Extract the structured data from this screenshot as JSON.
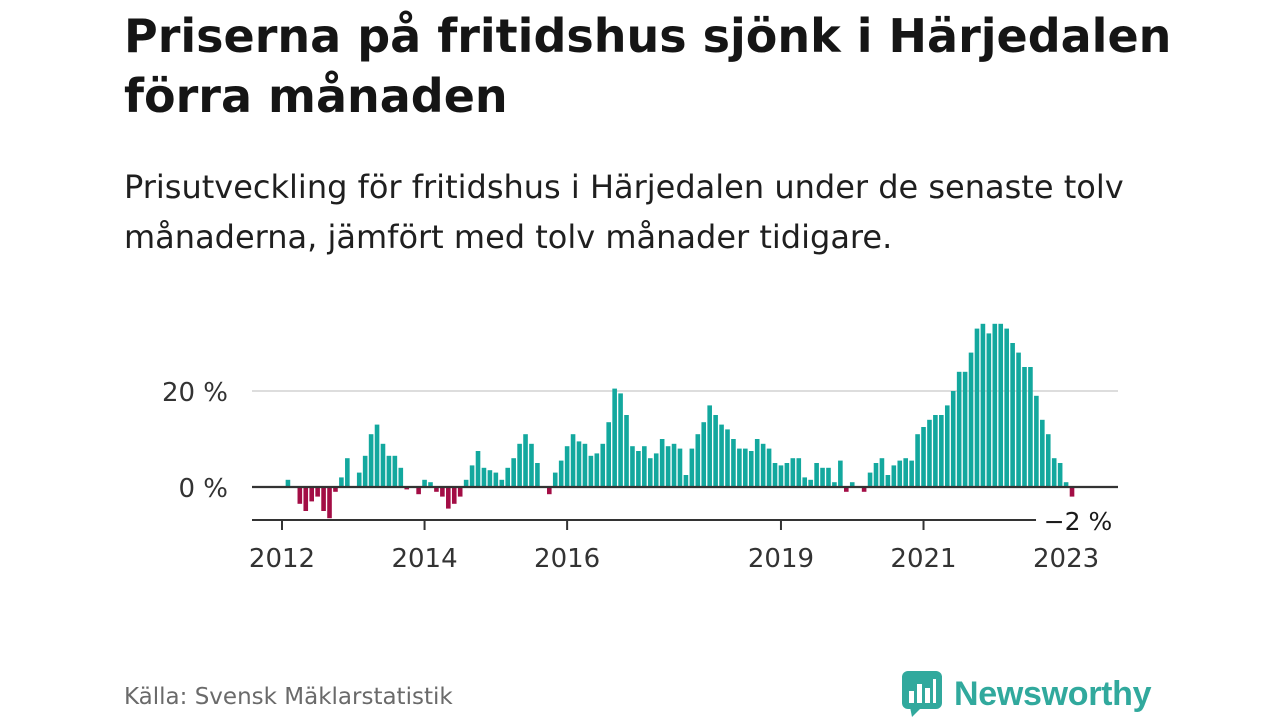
{
  "header": {
    "title": "Priserna på fritidshus sjönk i Härjedalen förra månaden",
    "subtitle": "Prisutveckling för fritidshus i Härjedalen under de senaste tolv månaderna, jämfört med tolv månader tidigare."
  },
  "footer": {
    "source": "Källa: Svensk Mäklarstatistik",
    "brand": "Newsworthy"
  },
  "colors": {
    "positive": "#13a89e",
    "negative": "#a30d45",
    "grid": "#dddddd",
    "axis": "#333333",
    "brand": "#31a99d"
  },
  "chart_data": {
    "type": "bar",
    "x_start": "2012-01",
    "x_end": "2023-03",
    "ylim": [
      -7,
      35
    ],
    "yticks": [
      0,
      20
    ],
    "ytick_labels": [
      "0 %",
      "20 %"
    ],
    "xtick_labels": [
      "2012",
      "2014",
      "2016",
      "2019",
      "2021",
      "2023"
    ],
    "xtick_months": [
      "2012-01",
      "2014-01",
      "2016-01",
      "2019-01",
      "2021-01",
      "2023-01"
    ],
    "last_value_label": "−2 %",
    "grid": true,
    "legend": "none",
    "values": [
      0,
      1.5,
      0,
      -3.5,
      -5,
      -3,
      -2,
      -5,
      -6.5,
      -1,
      2,
      6,
      0,
      3,
      6.5,
      11,
      13,
      9,
      6.5,
      6.5,
      4,
      -0.5,
      0,
      -1.5,
      1.5,
      1,
      -1,
      -2,
      -4.5,
      -3.5,
      -2,
      1.5,
      4.5,
      7.5,
      4,
      3.5,
      3,
      1.5,
      4,
      6,
      9,
      11,
      9,
      5,
      0,
      -1.5,
      3,
      5.5,
      8.5,
      11,
      9.5,
      9,
      6.5,
      7,
      9,
      13.5,
      20.5,
      19.5,
      15,
      8.5,
      7.5,
      8.5,
      6,
      7,
      10,
      8.5,
      9,
      8,
      2.5,
      8,
      11,
      13.5,
      17,
      15,
      13,
      12,
      10,
      8,
      8,
      7.5,
      10,
      9,
      8,
      5,
      4.5,
      5,
      6,
      6,
      2,
      1.5,
      5,
      4,
      4,
      1,
      5.5,
      -1,
      1,
      0,
      -1,
      3,
      5,
      6,
      2.5,
      4.5,
      5.5,
      6,
      5.5,
      11,
      12.5,
      14,
      15,
      15,
      17,
      20,
      24,
      24,
      28,
      33,
      34,
      32,
      34,
      34,
      33,
      30,
      28,
      25,
      25,
      19,
      14,
      11,
      6,
      5,
      1,
      -2
    ]
  }
}
